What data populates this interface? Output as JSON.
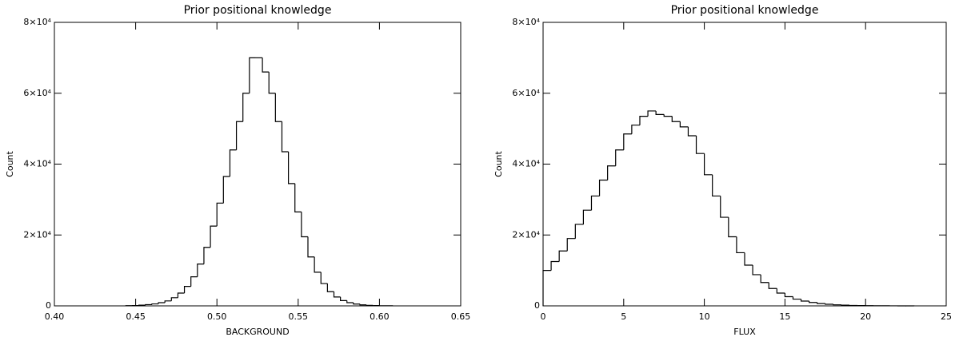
{
  "chart_data": [
    {
      "type": "histogram",
      "title": "Prior positional knowledge",
      "xlabel": "BACKGROUND",
      "ylabel": "Count",
      "color": "#000000",
      "bins": [
        0.444,
        0.448,
        0.452,
        0.456,
        0.46,
        0.464,
        0.468,
        0.472,
        0.476,
        0.48,
        0.484,
        0.488,
        0.492,
        0.496,
        0.5,
        0.504,
        0.508,
        0.512,
        0.516,
        0.52,
        0.524,
        0.528,
        0.532,
        0.536,
        0.54,
        0.544,
        0.548,
        0.552,
        0.556,
        0.56,
        0.564,
        0.568,
        0.572,
        0.576,
        0.58,
        0.584,
        0.588,
        0.592,
        0.596,
        0.6,
        0.604,
        0.608
      ],
      "values": [
        50,
        100,
        200,
        350,
        550,
        900,
        1400,
        2300,
        3600,
        5500,
        8200,
        11800,
        16500,
        22500,
        29000,
        36500,
        44000,
        52000,
        60000,
        70000,
        70000,
        66000,
        60000,
        52000,
        43500,
        34500,
        26500,
        19500,
        13800,
        9500,
        6300,
        4000,
        2500,
        1500,
        900,
        500,
        280,
        150,
        80,
        40,
        20
      ],
      "xlim": [
        0.4,
        0.65
      ],
      "xticks": [
        {
          "value": 0.4,
          "label": "0.40"
        },
        {
          "value": 0.45,
          "label": "0.45"
        },
        {
          "value": 0.5,
          "label": "0.50"
        },
        {
          "value": 0.55,
          "label": "0.55"
        },
        {
          "value": 0.6,
          "label": "0.60"
        },
        {
          "value": 0.65,
          "label": "0.65"
        }
      ],
      "ylim": [
        0,
        80000
      ],
      "yticks": [
        0,
        {
          "value": 20000,
          "label": "2×10⁴"
        },
        {
          "value": 40000,
          "label": "4×10⁴"
        },
        {
          "value": 60000,
          "label": "6×10⁴"
        },
        {
          "value": 80000,
          "label": "8×10⁴"
        }
      ]
    },
    {
      "type": "histogram",
      "title": "Prior positional knowledge",
      "xlabel": "FLUX",
      "ylabel": "Count",
      "color": "#000000",
      "bins": [
        0,
        0.5,
        1,
        1.5,
        2,
        2.5,
        3,
        3.5,
        4,
        4.5,
        5,
        5.5,
        6,
        6.5,
        7,
        7.5,
        8,
        8.5,
        9,
        9.5,
        10,
        10.5,
        11,
        11.5,
        12,
        12.5,
        13,
        13.5,
        14,
        14.5,
        15,
        15.5,
        16,
        16.5,
        17,
        17.5,
        18,
        18.5,
        19,
        19.5,
        20,
        20.5,
        21,
        21.5,
        22,
        22.5,
        23
      ],
      "values": [
        10000,
        12500,
        15500,
        19000,
        23000,
        27000,
        31000,
        35500,
        39500,
        44000,
        48500,
        51000,
        53500,
        55000,
        54000,
        53500,
        52000,
        50500,
        48000,
        43000,
        37000,
        31000,
        25000,
        19500,
        15000,
        11500,
        8800,
        6600,
        4900,
        3600,
        2600,
        1900,
        1350,
        950,
        650,
        450,
        300,
        200,
        130,
        85,
        55,
        35,
        20,
        12,
        7,
        4
      ],
      "xlim": [
        0,
        25
      ],
      "xticks": [
        0,
        5,
        10,
        15,
        20,
        25
      ],
      "ylim": [
        0,
        80000
      ],
      "yticks": [
        0,
        {
          "value": 20000,
          "label": "2×10⁴"
        },
        {
          "value": 40000,
          "label": "4×10⁴"
        },
        {
          "value": 60000,
          "label": "6×10⁴"
        },
        {
          "value": 80000,
          "label": "8×10⁴"
        }
      ]
    }
  ]
}
